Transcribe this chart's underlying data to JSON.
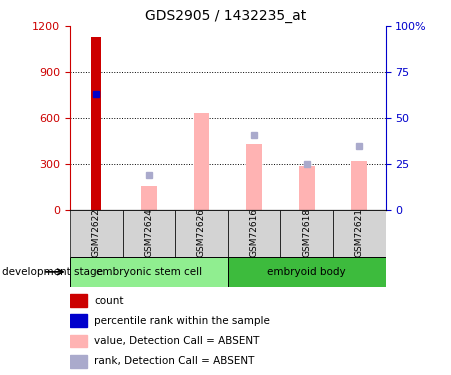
{
  "title": "GDS2905 / 1432235_at",
  "samples": [
    "GSM72622",
    "GSM72624",
    "GSM72626",
    "GSM72616",
    "GSM72618",
    "GSM72621"
  ],
  "count_values": [
    1130,
    null,
    null,
    null,
    null,
    null
  ],
  "percentile_pct": [
    63,
    null,
    null,
    null,
    null,
    null
  ],
  "absent_value_bars": [
    null,
    155,
    635,
    430,
    285,
    320
  ],
  "absent_rank_pct": [
    null,
    19,
    null,
    41,
    25,
    35
  ],
  "ylim_left": [
    0,
    1200
  ],
  "ylim_right": [
    0,
    100
  ],
  "yticks_left": [
    0,
    300,
    600,
    900,
    1200
  ],
  "yticks_right": [
    0,
    25,
    50,
    75,
    100
  ],
  "ytick_labels_left": [
    "0",
    "300",
    "600",
    "900",
    "1200"
  ],
  "ytick_labels_right": [
    "0",
    "25",
    "50",
    "75",
    "100%"
  ],
  "colors": {
    "count_bar": "#cc0000",
    "percentile_marker": "#0000cc",
    "absent_value_bar": "#ffb3b3",
    "absent_rank_marker": "#aaaacc",
    "left_axis_color": "#cc0000",
    "right_axis_color": "#0000cc"
  },
  "group1_label": "embryonic stem cell",
  "group2_label": "embryoid body",
  "group1_color": "#90ee90",
  "group2_color": "#3dbb3d",
  "sample_box_color": "#d3d3d3",
  "legend_items": [
    {
      "label": "count",
      "color": "#cc0000"
    },
    {
      "label": "percentile rank within the sample",
      "color": "#0000cc"
    },
    {
      "label": "value, Detection Call = ABSENT",
      "color": "#ffb3b3"
    },
    {
      "label": "rank, Detection Call = ABSENT",
      "color": "#aaaacc"
    }
  ],
  "development_stage_label": "development stage"
}
